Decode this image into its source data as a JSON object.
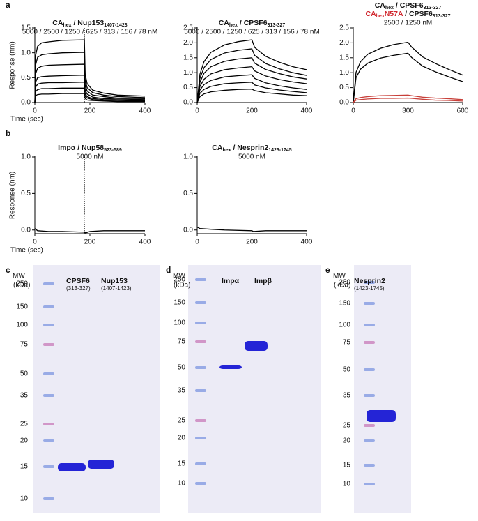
{
  "panel_labels": [
    "a",
    "b",
    "c",
    "d",
    "e"
  ],
  "chart_data": [
    {
      "type": "line",
      "title": [
        {
          "text": "CA"
        },
        {
          "text": "hex",
          "sub": true
        },
        {
          "text": " / Nup153"
        },
        {
          "text": "1407-1423",
          "sub": true
        }
      ],
      "subtitle": "5000 / 2500 / 1250 / 625 / 313 / 156 / 78 nM",
      "xlabel": "Time (sec)",
      "ylabel": "Response (nm)",
      "x": [
        0,
        3,
        10,
        25,
        50,
        100,
        180,
        183,
        190,
        210,
        250,
        300,
        400
      ],
      "series": [
        {
          "color": "#000000",
          "values": [
            0,
            0.95,
            1.13,
            1.2,
            1.22,
            1.25,
            1.26,
            0.57,
            0.38,
            0.25,
            0.19,
            0.15,
            0.13
          ]
        },
        {
          "color": "#000000",
          "values": [
            0,
            0.76,
            0.91,
            0.96,
            0.98,
            1.0,
            1.01,
            0.45,
            0.3,
            0.2,
            0.15,
            0.12,
            0.1
          ]
        },
        {
          "color": "#000000",
          "values": [
            0,
            0.58,
            0.69,
            0.73,
            0.75,
            0.76,
            0.77,
            0.35,
            0.23,
            0.15,
            0.12,
            0.09,
            0.08
          ]
        },
        {
          "color": "#000000",
          "values": [
            0,
            0.41,
            0.5,
            0.52,
            0.53,
            0.54,
            0.55,
            0.25,
            0.17,
            0.11,
            0.08,
            0.07,
            0.06
          ]
        },
        {
          "color": "#000000",
          "values": [
            0,
            0.31,
            0.37,
            0.39,
            0.4,
            0.4,
            0.41,
            0.18,
            0.12,
            0.08,
            0.06,
            0.05,
            0.04
          ]
        },
        {
          "color": "#000000",
          "values": [
            0,
            0.22,
            0.26,
            0.28,
            0.28,
            0.29,
            0.29,
            0.13,
            0.09,
            0.06,
            0.04,
            0.04,
            0.03
          ]
        },
        {
          "color": "#000000",
          "values": [
            0,
            0.14,
            0.16,
            0.17,
            0.17,
            0.18,
            0.18,
            0.08,
            0.05,
            0.04,
            0.03,
            0.02,
            0.02
          ]
        }
      ],
      "xlim": [
        0,
        400
      ],
      "ylim": [
        0,
        1.5
      ],
      "xticks": [
        0,
        200,
        400
      ],
      "yticks": [
        {
          "value": 0,
          "label": "0.0"
        },
        0.5,
        {
          "value": 1,
          "label": "1.0"
        },
        1.5
      ],
      "marker_x": 180
    },
    {
      "type": "line",
      "title": [
        {
          "text": "CA"
        },
        {
          "text": "hex",
          "sub": true
        },
        {
          "text": " / CPSF6"
        },
        {
          "text": "313-327",
          "sub": true
        }
      ],
      "subtitle": "5000 / 2500 / 1250 / 625 / 313 / 156 / 78 nM",
      "x": [
        0,
        10,
        25,
        50,
        100,
        150,
        200,
        210,
        250,
        300,
        350,
        400
      ],
      "series": [
        {
          "color": "#000000",
          "values": [
            0,
            0.95,
            1.37,
            1.68,
            1.93,
            2.04,
            2.1,
            1.85,
            1.55,
            1.35,
            1.2,
            1.1
          ]
        },
        {
          "color": "#000000",
          "values": [
            0,
            0.81,
            1.17,
            1.44,
            1.66,
            1.75,
            1.8,
            1.58,
            1.31,
            1.13,
            1.0,
            0.91
          ]
        },
        {
          "color": "#000000",
          "values": [
            0,
            0.68,
            0.98,
            1.2,
            1.38,
            1.46,
            1.5,
            1.32,
            1.11,
            0.97,
            0.86,
            0.79
          ]
        },
        {
          "color": "#000000",
          "values": [
            0,
            0.54,
            0.78,
            0.96,
            1.1,
            1.16,
            1.2,
            1.06,
            0.89,
            0.77,
            0.69,
            0.63
          ]
        },
        {
          "color": "#000000",
          "values": [
            0,
            0.42,
            0.6,
            0.74,
            0.86,
            0.9,
            0.93,
            0.81,
            0.66,
            0.56,
            0.49,
            0.44
          ]
        },
        {
          "color": "#000000",
          "values": [
            0,
            0.31,
            0.44,
            0.54,
            0.63,
            0.66,
            0.68,
            0.59,
            0.49,
            0.42,
            0.37,
            0.33
          ]
        },
        {
          "color": "#000000",
          "values": [
            0,
            0.2,
            0.29,
            0.36,
            0.41,
            0.44,
            0.45,
            0.4,
            0.33,
            0.29,
            0.25,
            0.23
          ]
        }
      ],
      "xlim": [
        0,
        400
      ],
      "ylim": [
        0,
        2.5
      ],
      "xticks": [
        0,
        200,
        400
      ],
      "yticks": [
        {
          "value": 0,
          "label": "0.0"
        },
        0.5,
        {
          "value": 1,
          "label": "1.0"
        },
        1.5,
        {
          "value": 2,
          "label": "2.0"
        },
        2.5
      ],
      "marker_x": 200
    },
    {
      "type": "line",
      "title": [
        {
          "text": "CA"
        },
        {
          "text": "hex",
          "sub": true
        },
        {
          "text": " / CPSF6"
        },
        {
          "text": "313-327",
          "sub": true
        }
      ],
      "title2": [
        {
          "text": "CA",
          "color": "#d0262d"
        },
        {
          "text": "hex",
          "sub": true,
          "color": "#d0262d"
        },
        {
          "text": "N57A",
          "color": "#d0262d"
        },
        {
          "text": " / CPSF6"
        },
        {
          "text": "313-327",
          "sub": true
        }
      ],
      "subtitle": "2500 / 1250 nM",
      "x": [
        0,
        15,
        40,
        80,
        150,
        220,
        300,
        320,
        380,
        450,
        520,
        600
      ],
      "series": [
        {
          "color": "#000000",
          "values": [
            0,
            1.01,
            1.37,
            1.62,
            1.82,
            1.94,
            2.02,
            1.86,
            1.53,
            1.31,
            1.12,
            0.92
          ]
        },
        {
          "color": "#000000",
          "values": [
            0,
            0.83,
            1.12,
            1.32,
            1.49,
            1.58,
            1.65,
            1.51,
            1.22,
            1.03,
            0.87,
            0.7
          ]
        },
        {
          "color": "#c8403a",
          "values": [
            0,
            0.13,
            0.17,
            0.2,
            0.23,
            0.24,
            0.25,
            0.23,
            0.18,
            0.15,
            0.13,
            0.1
          ]
        },
        {
          "color": "#c8403a",
          "values": [
            0,
            0.08,
            0.1,
            0.12,
            0.14,
            0.14,
            0.15,
            0.14,
            0.11,
            0.08,
            0.07,
            0.05
          ]
        }
      ],
      "xlim": [
        0,
        600
      ],
      "ylim": [
        0,
        2.5
      ],
      "xticks": [
        0,
        300,
        600
      ],
      "yticks": [
        {
          "value": 0,
          "label": "0.0"
        },
        0.5,
        {
          "value": 1,
          "label": "1.0"
        },
        1.5,
        {
          "value": 2,
          "label": "2.0"
        },
        2.5
      ],
      "marker_x": 300
    },
    {
      "type": "line",
      "title": [
        {
          "text": "Impα / Nup58"
        },
        {
          "text": "523-589",
          "sub": true
        }
      ],
      "subtitle": "5000 nM",
      "xlabel": "Time (sec)",
      "ylabel": "Response (nm)",
      "x": [
        0,
        10,
        50,
        100,
        180,
        185,
        200,
        250,
        300,
        400
      ],
      "series": [
        {
          "color": "#000000",
          "values": [
            0.02,
            -0.01,
            -0.02,
            -0.02,
            -0.03,
            -0.04,
            -0.02,
            -0.01,
            -0.01,
            -0.01
          ]
        }
      ],
      "xlim": [
        0,
        400
      ],
      "ylim": [
        -0.05,
        1
      ],
      "xticks": [
        0,
        200,
        400
      ],
      "yticks": [
        {
          "value": 0,
          "label": "0.0"
        },
        0.5,
        {
          "value": 1,
          "label": "1.0"
        }
      ],
      "marker_x": 180
    },
    {
      "type": "line",
      "title": [
        {
          "text": "CA"
        },
        {
          "text": "hex",
          "sub": true
        },
        {
          "text": " / Nesprin2"
        },
        {
          "text": "1423-1745",
          "sub": true
        }
      ],
      "subtitle": "5000 nM",
      "x": [
        0,
        10,
        50,
        100,
        200,
        205,
        250,
        300,
        400
      ],
      "series": [
        {
          "color": "#000000",
          "values": [
            0.04,
            0.02,
            0.01,
            0,
            -0.01,
            -0.02,
            -0.01,
            -0.01,
            -0.01
          ]
        }
      ],
      "xlim": [
        0,
        400
      ],
      "ylim": [
        -0.05,
        1
      ],
      "xticks": [
        0,
        200,
        400
      ],
      "yticks": [
        {
          "value": 0,
          "label": "0.0"
        },
        0.5,
        {
          "value": 1,
          "label": "1.0"
        }
      ],
      "marker_x": 200
    }
  ],
  "gels": [
    {
      "mw_header": "MW",
      "mw_unit": "(kDa)",
      "mw": [
        250,
        150,
        100,
        75,
        50,
        35,
        25,
        20,
        15,
        10
      ],
      "lanes": [
        {
          "name": "CPSF6",
          "range": "(313-327)"
        },
        {
          "name": "Nup153",
          "range": "(1407-1423)"
        }
      ]
    },
    {
      "mw_header": "MW",
      "mw_unit": "(kDa)",
      "mw": [
        250,
        150,
        100,
        75,
        50,
        35,
        25,
        20,
        15,
        10
      ],
      "lanes": [
        {
          "name": "Impα"
        },
        {
          "name": "Impβ"
        }
      ]
    },
    {
      "mw_header": "MW",
      "mw_unit": "(kDa)",
      "mw": [
        250,
        150,
        100,
        75,
        50,
        35,
        25,
        20,
        15,
        10
      ],
      "lanes": [
        {
          "name": "Nesprin2",
          "range": "(1423-1745)"
        }
      ]
    }
  ]
}
